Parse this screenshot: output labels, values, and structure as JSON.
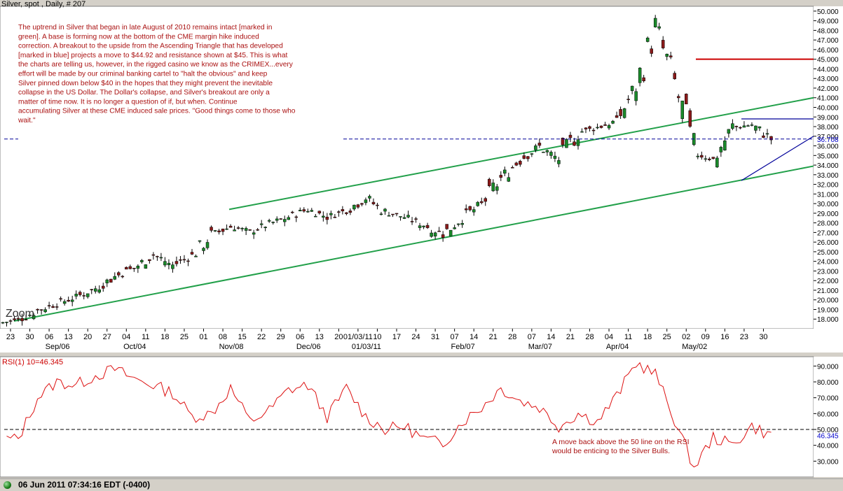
{
  "chart_data": [
    {
      "type": "candlestick",
      "title": "Silver, spot , Daily, # 207",
      "annotation": "The uptrend in Silver that began in late August of 2010 remains intact [marked in green].   A base is forming now at the bottom of the CME margin hike induced correction.  A breakout to the upside from the Ascending Triangle that has developed [marked in blue] projects a move to $44.92 and resistance shown at $45.  This is what the charts are telling us, however, in the rigged casino we know as the CRIMEX...every effort will be made by our criminal banking cartel to \"halt the obvious\" and keep Silver pinned down below $40 in the hopes that they might prevent the inevitable collapse in the US Dollar.  The Dollar's collapse, and Silver's breakout are only a matter of time now.  It is no longer a question of if, but when.  Continue accumulating Silver at these CME induced sale prices.  \"Good things come to those who wait.\"",
      "zoom_label": "Zoom",
      "ylim": [
        17,
        50.5
      ],
      "y_ticks": [
        18,
        19,
        20,
        21,
        22,
        23,
        24,
        25,
        26,
        27,
        28,
        29,
        30,
        31,
        32,
        33,
        34,
        35,
        36,
        37,
        38,
        39,
        40,
        41,
        42,
        43,
        44,
        45,
        46,
        47,
        48,
        49,
        50
      ],
      "y_tick_labels": [
        "18.000",
        "19.000",
        "20.000",
        "21.000",
        "22.000",
        "23.000",
        "24.000",
        "25.000",
        "26.000",
        "27.000",
        "28.000",
        "29.000",
        "30.000",
        "31.000",
        "32.000",
        "33.000",
        "34.000",
        "35.000",
        "36.000",
        "37.000",
        "38.000",
        "39.000",
        "40.000",
        "41.000",
        "42.000",
        "43.000",
        "44.000",
        "45.000",
        "46.000",
        "47.000",
        "48.000",
        "49.000",
        "50.000"
      ],
      "last_price": 36.708,
      "last_price_label": "36.708",
      "x_day_labels": [
        "23",
        "30",
        "06",
        "13",
        "20",
        "27",
        "04",
        "11",
        "18",
        "25",
        "01",
        "08",
        "15",
        "22",
        "29",
        "06",
        "13",
        "20",
        "01/03/11",
        "10",
        "17",
        "24",
        "31",
        "07",
        "14",
        "21",
        "28",
        "07",
        "14",
        "21",
        "28",
        "04",
        "11",
        "18",
        "25",
        "02",
        "09",
        "16",
        "23",
        "30"
      ],
      "x_month_labels": [
        {
          "label": "Sep/06",
          "index": 2
        },
        {
          "label": "Oct/04",
          "index": 6
        },
        {
          "label": "Nov/08",
          "index": 11
        },
        {
          "label": "Dec/06",
          "index": 15
        },
        {
          "label": "01/03/11",
          "index": 18
        },
        {
          "label": "Feb/07",
          "index": 23
        },
        {
          "label": "Mar/07",
          "index": 27
        },
        {
          "label": "Apr/04",
          "index": 31
        },
        {
          "label": "May/02",
          "index": 35
        }
      ],
      "weekly_closes": [
        17.9,
        18.9,
        19.6,
        20.3,
        21.2,
        22.4,
        23.3,
        24.7,
        23.6,
        24.6,
        26.7,
        27.6,
        27.1,
        27.9,
        28.6,
        29.4,
        28.6,
        29.3,
        30.6,
        29.1,
        28.6,
        27.8,
        26.8,
        28.6,
        29.9,
        32.6,
        34.6,
        35.9,
        34.6,
        37.4,
        37.9,
        38.6,
        42.2,
        48.2,
        42.5,
        35.2,
        34.6,
        37.9,
        38.2,
        36.7
      ],
      "resistance": {
        "price": 45,
        "color": "#cc0000"
      },
      "uptrend_color": "#22a04a",
      "triangle_color": "#000099",
      "up_candle_color": "#1a8a2a",
      "down_candle_color": "#8b1a1a"
    },
    {
      "type": "line",
      "title": "RSI(1) 10=46.345",
      "ylim": [
        20,
        95
      ],
      "y_ticks": [
        30,
        40,
        50,
        60,
        70,
        80,
        90
      ],
      "y_tick_labels": [
        "30.000",
        "40.000",
        "50.000",
        "60.000",
        "70.000",
        "80.000",
        "90.000"
      ],
      "reference_line": 50,
      "last_value": 46.345,
      "last_value_label": "46.345",
      "annotation": "A move back above the 50 line on the RSI would be enticing to the Silver Bulls.",
      "annotation_lines": [
        "A move back above the 50 line on the RSI",
        "would be enticing to the Silver Bulls."
      ],
      "weekly_values": [
        44,
        70,
        80,
        78,
        84,
        88,
        82,
        78,
        73,
        58,
        60,
        76,
        55,
        62,
        75,
        78,
        58,
        76,
        58,
        50,
        52,
        44,
        41,
        55,
        64,
        76,
        68,
        64,
        52,
        60,
        55,
        71,
        92,
        85,
        56,
        26,
        45,
        40,
        52,
        46
      ],
      "line_color": "#dd1111"
    }
  ],
  "status": {
    "timestamp": "06 Jun 2011 07:34:16  EDT (-0400)"
  }
}
